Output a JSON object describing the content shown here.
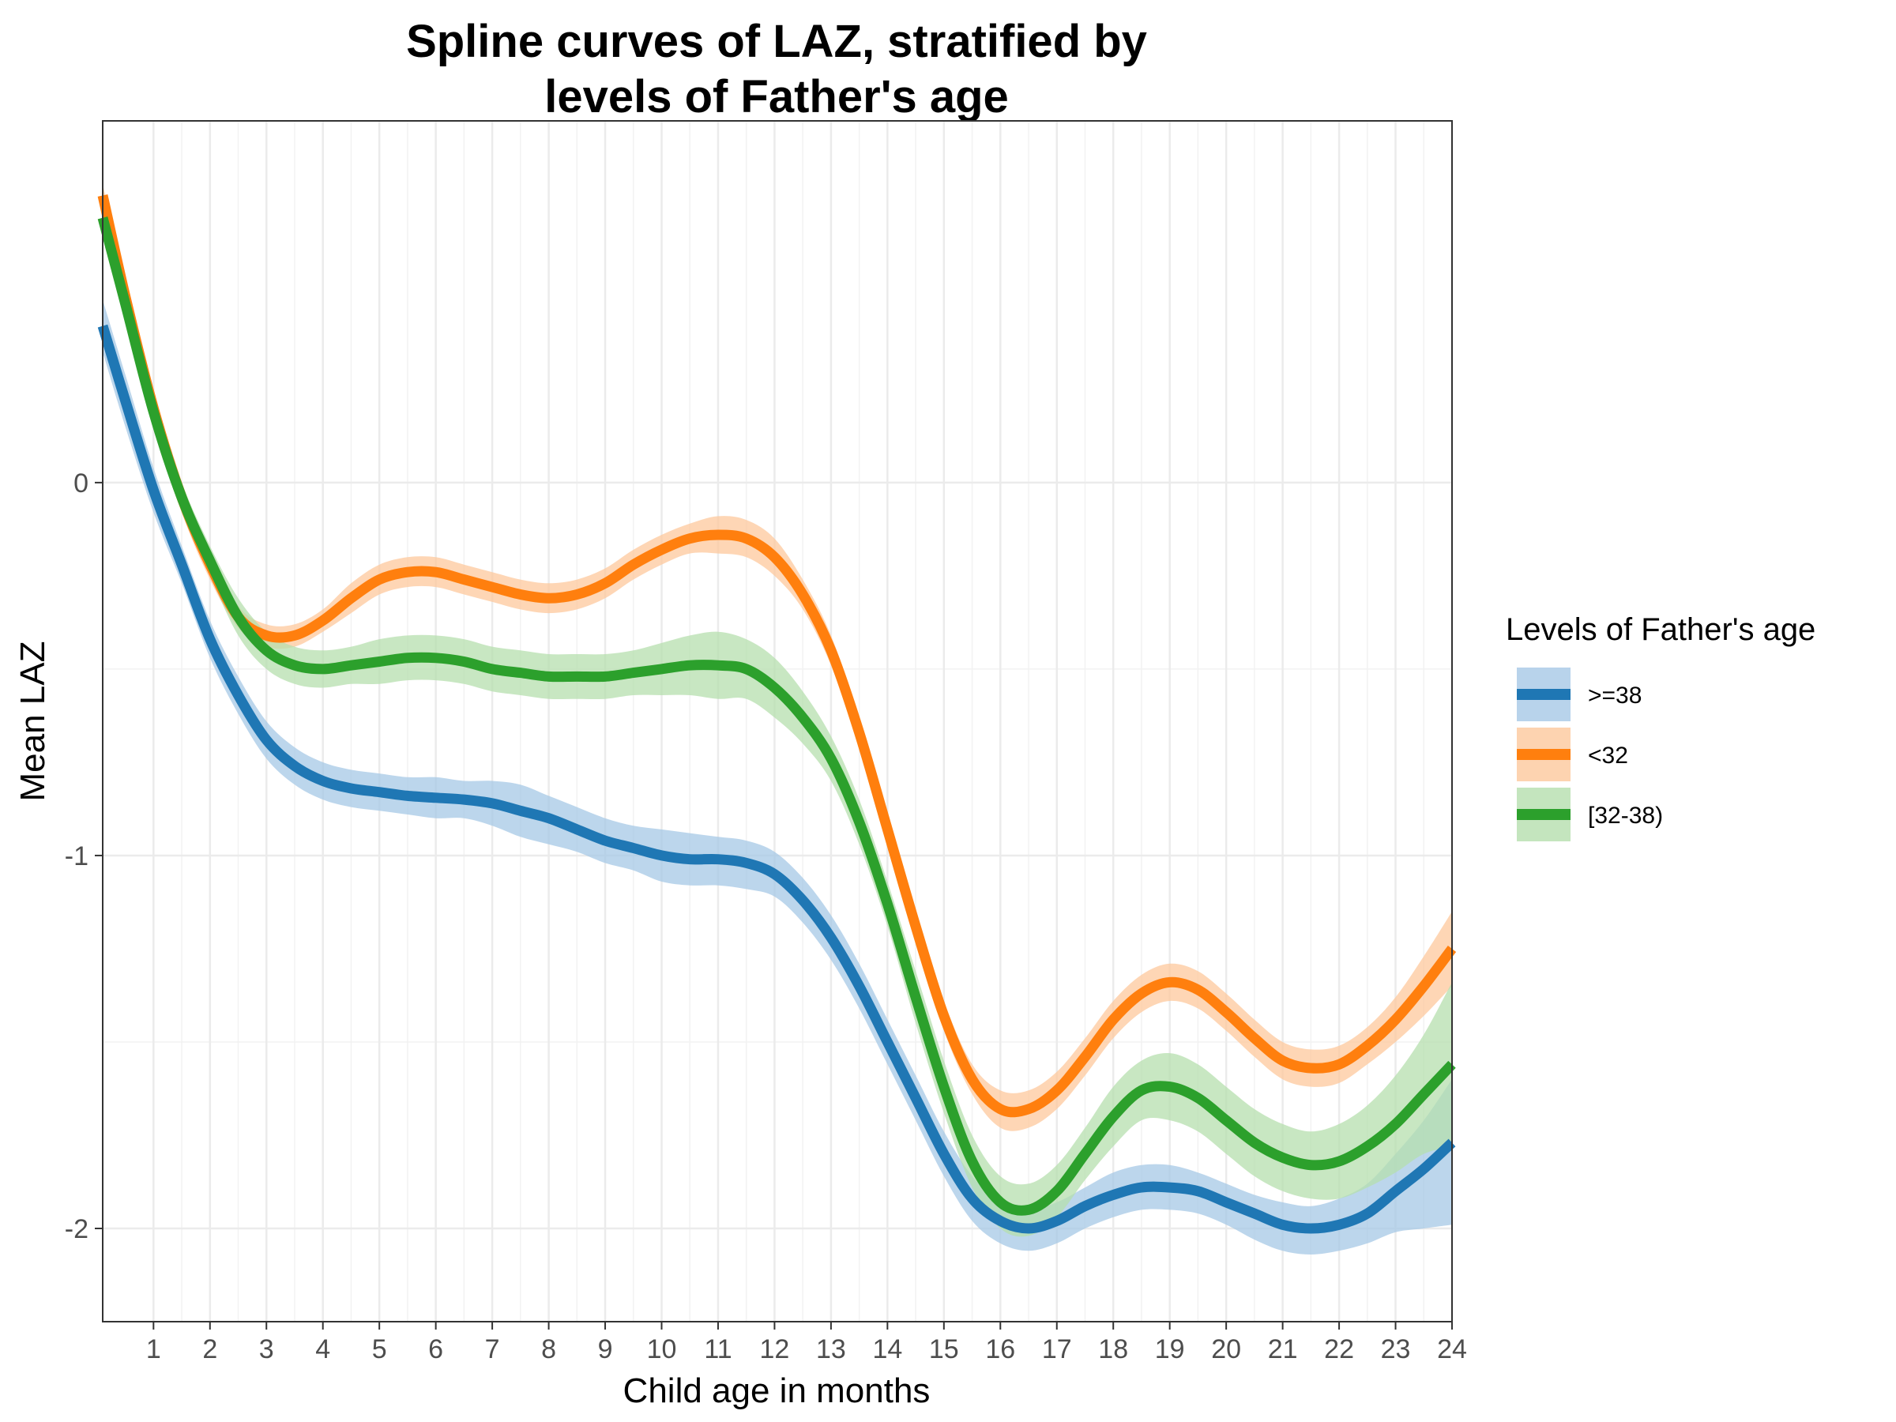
{
  "chart_data": {
    "type": "line",
    "title_lines": [
      "Spline curves of LAZ, stratified by",
      "levels of Father's age"
    ],
    "xlabel": "Child age in months",
    "ylabel": "Mean LAZ",
    "xlim": [
      0.1,
      24
    ],
    "ylim": [
      -2.25,
      0.97
    ],
    "x_ticks": [
      1,
      2,
      3,
      4,
      5,
      6,
      7,
      8,
      9,
      10,
      11,
      12,
      13,
      14,
      15,
      16,
      17,
      18,
      19,
      20,
      21,
      22,
      23,
      24
    ],
    "y_ticks": [
      0,
      -1,
      -2
    ],
    "y_tick_labels": [
      "0",
      "-1",
      "-2"
    ],
    "grid": true,
    "legend": {
      "title": "Levels of Father's age",
      "position": "right"
    },
    "series": [
      {
        "name": ">=38",
        "color": "#1f77b4",
        "band_color": "#a6c8e6",
        "x": [
          0.1,
          0.5,
          1,
          1.5,
          2,
          2.5,
          3,
          3.5,
          4,
          4.5,
          5,
          5.5,
          6,
          6.5,
          7,
          7.5,
          8,
          8.5,
          9,
          9.5,
          10,
          10.5,
          11,
          11.5,
          12,
          12.5,
          13,
          13.5,
          14,
          14.5,
          15,
          15.5,
          16,
          16.5,
          17,
          17.5,
          18,
          18.5,
          19,
          19.5,
          20,
          20.5,
          21,
          21.5,
          22,
          22.5,
          23,
          23.5,
          24
        ],
        "y": [
          0.42,
          0.22,
          -0.02,
          -0.22,
          -0.42,
          -0.57,
          -0.69,
          -0.76,
          -0.8,
          -0.82,
          -0.83,
          -0.84,
          -0.845,
          -0.85,
          -0.86,
          -0.88,
          -0.9,
          -0.93,
          -0.96,
          -0.98,
          -1.0,
          -1.01,
          -1.01,
          -1.02,
          -1.05,
          -1.12,
          -1.22,
          -1.35,
          -1.5,
          -1.65,
          -1.8,
          -1.92,
          -1.98,
          -2.0,
          -1.98,
          -1.94,
          -1.91,
          -1.89,
          -1.89,
          -1.9,
          -1.93,
          -1.96,
          -1.99,
          -2.0,
          -1.99,
          -1.96,
          -1.9,
          -1.84,
          -1.77
        ],
        "upper": [
          0.49,
          0.29,
          0.04,
          -0.17,
          -0.37,
          -0.52,
          -0.64,
          -0.71,
          -0.75,
          -0.77,
          -0.78,
          -0.79,
          -0.79,
          -0.8,
          -0.8,
          -0.81,
          -0.84,
          -0.87,
          -0.9,
          -0.92,
          -0.93,
          -0.94,
          -0.95,
          -0.96,
          -0.99,
          -1.06,
          -1.16,
          -1.29,
          -1.44,
          -1.59,
          -1.74,
          -1.86,
          -1.93,
          -1.95,
          -1.93,
          -1.89,
          -1.85,
          -1.83,
          -1.83,
          -1.85,
          -1.88,
          -1.91,
          -1.93,
          -1.94,
          -1.92,
          -1.88,
          -1.8,
          -1.71,
          -1.6
        ],
        "lower": [
          0.35,
          0.15,
          -0.08,
          -0.27,
          -0.47,
          -0.62,
          -0.74,
          -0.81,
          -0.85,
          -0.87,
          -0.88,
          -0.89,
          -0.9,
          -0.9,
          -0.92,
          -0.95,
          -0.97,
          -0.99,
          -1.02,
          -1.04,
          -1.07,
          -1.08,
          -1.08,
          -1.09,
          -1.11,
          -1.18,
          -1.28,
          -1.41,
          -1.56,
          -1.71,
          -1.86,
          -1.98,
          -2.04,
          -2.06,
          -2.04,
          -2.0,
          -1.97,
          -1.95,
          -1.95,
          -1.96,
          -1.99,
          -2.03,
          -2.06,
          -2.07,
          -2.06,
          -2.04,
          -2.01,
          -2.0,
          -1.99
        ]
      },
      {
        "name": "<32",
        "color": "#ff7f0e",
        "band_color": "#fdc89c",
        "x": [
          0.1,
          0.5,
          1,
          1.5,
          2,
          2.5,
          3,
          3.5,
          4,
          4.5,
          5,
          5.5,
          6,
          6.5,
          7,
          7.5,
          8,
          8.5,
          9,
          9.5,
          10,
          10.5,
          11,
          11.5,
          12,
          12.5,
          13,
          13.5,
          14,
          14.5,
          15,
          15.5,
          16,
          16.5,
          17,
          17.5,
          18,
          18.5,
          19,
          19.5,
          20,
          20.5,
          21,
          21.5,
          22,
          22.5,
          23,
          23.5,
          24
        ],
        "y": [
          0.77,
          0.5,
          0.2,
          -0.04,
          -0.22,
          -0.36,
          -0.41,
          -0.41,
          -0.37,
          -0.31,
          -0.26,
          -0.24,
          -0.24,
          -0.26,
          -0.28,
          -0.3,
          -0.31,
          -0.3,
          -0.27,
          -0.22,
          -0.18,
          -0.15,
          -0.14,
          -0.15,
          -0.2,
          -0.3,
          -0.45,
          -0.67,
          -0.93,
          -1.19,
          -1.43,
          -1.6,
          -1.68,
          -1.68,
          -1.63,
          -1.54,
          -1.44,
          -1.37,
          -1.34,
          -1.36,
          -1.42,
          -1.49,
          -1.55,
          -1.57,
          -1.56,
          -1.51,
          -1.44,
          -1.35,
          -1.25
        ],
        "upper": [
          0.8,
          0.54,
          0.24,
          0.0,
          -0.18,
          -0.33,
          -0.38,
          -0.38,
          -0.34,
          -0.27,
          -0.22,
          -0.2,
          -0.2,
          -0.22,
          -0.24,
          -0.26,
          -0.27,
          -0.26,
          -0.23,
          -0.18,
          -0.14,
          -0.11,
          -0.09,
          -0.1,
          -0.15,
          -0.26,
          -0.41,
          -0.63,
          -0.89,
          -1.15,
          -1.39,
          -1.56,
          -1.63,
          -1.63,
          -1.58,
          -1.49,
          -1.39,
          -1.32,
          -1.29,
          -1.31,
          -1.37,
          -1.44,
          -1.5,
          -1.52,
          -1.51,
          -1.46,
          -1.38,
          -1.27,
          -1.15
        ],
        "lower": [
          0.74,
          0.46,
          0.16,
          -0.08,
          -0.26,
          -0.39,
          -0.44,
          -0.44,
          -0.4,
          -0.35,
          -0.3,
          -0.28,
          -0.28,
          -0.3,
          -0.32,
          -0.34,
          -0.35,
          -0.34,
          -0.31,
          -0.26,
          -0.22,
          -0.19,
          -0.19,
          -0.2,
          -0.25,
          -0.34,
          -0.49,
          -0.71,
          -0.97,
          -1.23,
          -1.47,
          -1.64,
          -1.73,
          -1.73,
          -1.68,
          -1.59,
          -1.49,
          -1.42,
          -1.39,
          -1.41,
          -1.47,
          -1.54,
          -1.6,
          -1.62,
          -1.61,
          -1.56,
          -1.5,
          -1.43,
          -1.35
        ]
      },
      {
        "name": "[32-38)",
        "color": "#2ca02c",
        "band_color": "#b5dfae",
        "x": [
          0.1,
          0.5,
          1,
          1.5,
          2,
          2.5,
          3,
          3.5,
          4,
          4.5,
          5,
          5.5,
          6,
          6.5,
          7,
          7.5,
          8,
          8.5,
          9,
          9.5,
          10,
          10.5,
          11,
          11.5,
          12,
          12.5,
          13,
          13.5,
          14,
          14.5,
          15,
          15.5,
          16,
          16.5,
          17,
          17.5,
          18,
          18.5,
          19,
          19.5,
          20,
          20.5,
          21,
          21.5,
          22,
          22.5,
          23,
          23.5,
          24
        ],
        "y": [
          0.71,
          0.48,
          0.19,
          -0.04,
          -0.21,
          -0.36,
          -0.45,
          -0.49,
          -0.5,
          -0.49,
          -0.48,
          -0.47,
          -0.47,
          -0.48,
          -0.5,
          -0.51,
          -0.52,
          -0.52,
          -0.52,
          -0.51,
          -0.5,
          -0.49,
          -0.49,
          -0.5,
          -0.55,
          -0.63,
          -0.74,
          -0.91,
          -1.13,
          -1.38,
          -1.62,
          -1.82,
          -1.93,
          -1.95,
          -1.9,
          -1.8,
          -1.7,
          -1.63,
          -1.62,
          -1.65,
          -1.71,
          -1.77,
          -1.81,
          -1.83,
          -1.82,
          -1.78,
          -1.72,
          -1.64,
          -1.56
        ],
        "upper": [
          0.75,
          0.52,
          0.23,
          0.0,
          -0.17,
          -0.31,
          -0.4,
          -0.44,
          -0.45,
          -0.44,
          -0.42,
          -0.41,
          -0.41,
          -0.42,
          -0.44,
          -0.45,
          -0.46,
          -0.46,
          -0.46,
          -0.45,
          -0.43,
          -0.41,
          -0.4,
          -0.42,
          -0.47,
          -0.56,
          -0.68,
          -0.85,
          -1.07,
          -1.31,
          -1.55,
          -1.75,
          -1.86,
          -1.88,
          -1.83,
          -1.73,
          -1.62,
          -1.55,
          -1.53,
          -1.56,
          -1.62,
          -1.68,
          -1.72,
          -1.74,
          -1.72,
          -1.67,
          -1.59,
          -1.48,
          -1.34
        ],
        "lower": [
          0.67,
          0.44,
          0.15,
          -0.08,
          -0.25,
          -0.41,
          -0.5,
          -0.54,
          -0.55,
          -0.54,
          -0.54,
          -0.53,
          -0.53,
          -0.54,
          -0.56,
          -0.57,
          -0.58,
          -0.58,
          -0.58,
          -0.57,
          -0.57,
          -0.57,
          -0.58,
          -0.58,
          -0.63,
          -0.7,
          -0.8,
          -0.97,
          -1.19,
          -1.45,
          -1.69,
          -1.89,
          -2.0,
          -2.02,
          -1.97,
          -1.87,
          -1.78,
          -1.71,
          -1.71,
          -1.74,
          -1.8,
          -1.86,
          -1.9,
          -1.92,
          -1.92,
          -1.89,
          -1.85,
          -1.8,
          -1.78
        ]
      }
    ]
  }
}
